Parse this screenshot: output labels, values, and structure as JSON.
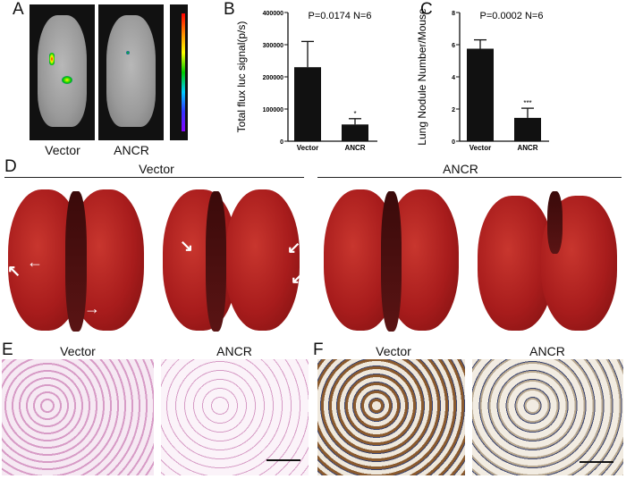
{
  "panels": {
    "A": {
      "label": "A",
      "captions": [
        "Vector",
        "ANCR"
      ],
      "colorbar": "rainbow luminescence scale"
    },
    "B": {
      "label": "B"
    },
    "C": {
      "label": "C"
    },
    "D": {
      "label": "D",
      "groups": [
        "Vector",
        "ANCR"
      ],
      "arrow_icon": "arrow-icon"
    },
    "E": {
      "label": "E",
      "captions": [
        "Vector",
        "ANCR"
      ]
    },
    "F": {
      "label": "F",
      "captions": [
        "Vector",
        "ANCR"
      ]
    }
  },
  "chart_data": [
    {
      "type": "bar",
      "panel": "B",
      "categories": [
        "Vector",
        "ANCR"
      ],
      "values": [
        230000,
        52000
      ],
      "error_upper": [
        310000,
        70000
      ],
      "ylabel": "Total flux luc signal(p/s)",
      "ylim": [
        0,
        400000
      ],
      "yticks": [
        "0",
        "100000",
        "200000",
        "300000",
        "400000"
      ],
      "annotation": "P=0.0174  N=6",
      "significance": [
        "",
        "*"
      ],
      "bar_color": "#111111",
      "grid": false
    },
    {
      "type": "bar",
      "panel": "C",
      "categories": [
        "Vector",
        "ANCR"
      ],
      "values": [
        5.75,
        1.45
      ],
      "error_upper": [
        6.3,
        2.05
      ],
      "ylabel": "Lung Nodule Number/Mouse",
      "ylim": [
        0,
        8
      ],
      "yticks": [
        "0",
        "2",
        "4",
        "6",
        "8"
      ],
      "annotation": "P=0.0002  N=6",
      "significance": [
        "",
        "***"
      ],
      "bar_color": "#111111",
      "grid": false
    }
  ]
}
